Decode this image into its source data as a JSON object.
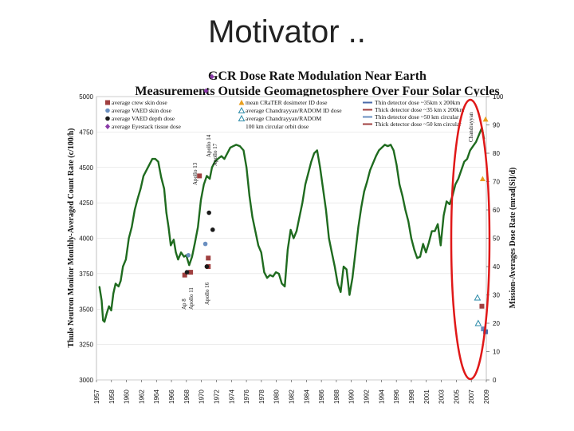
{
  "slide": {
    "title": "Motivator .."
  },
  "chart_data": {
    "type": "line",
    "title_line1": "GCR Dose Rate Modulation Near Earth",
    "title_line2": "Measurements Outside Geomagnetosphere Over Four Solar Cycles",
    "ylabel": "Thule Neutron Monitor Monthly-Averaged Count Rate (c/100/h)",
    "y2label": "Mission-Averages Dose Rate (mrad[Si]/d)",
    "ylim": [
      3000,
      5000
    ],
    "y2lim": [
      0,
      100
    ],
    "xlim": [
      1957,
      2010
    ],
    "x_ticks": [
      "1957",
      "1958",
      "1960",
      "1962",
      "1964",
      "1966",
      "1968",
      "1970",
      "1972",
      "1974",
      "1976",
      "1978",
      "1980",
      "1982",
      "1984",
      "1986",
      "1988",
      "1990",
      "1992",
      "1994",
      "1996",
      "1998",
      "2001",
      "2003",
      "2005",
      "2007",
      "2009"
    ],
    "y_ticks": [
      "3000",
      "3250",
      "3500",
      "3750",
      "4000",
      "4250",
      "4500",
      "4750",
      "5000"
    ],
    "y2_ticks": [
      "0",
      "10",
      "20",
      "30",
      "40",
      "50",
      "60",
      "70",
      "80",
      "90",
      "100"
    ],
    "colors": {
      "neutron": "#1f6b1f",
      "dose_rect": "#a04040",
      "dose_circle_blue": "#6a8fc0",
      "dose_dot": "#1a1a1a",
      "dose_diamond": "#8a3aa8",
      "triangle_fill": "#e8a020",
      "triangle_outline": "#2a8aa8",
      "highlight": "#e01818"
    },
    "legend": [
      {
        "label": "average crew skin dose",
        "marker": "square",
        "color": "#a04040"
      },
      {
        "label": "average VAED skin dose",
        "marker": "circle",
        "color": "#6a8fc0"
      },
      {
        "label": "average VAED depth dose",
        "marker": "circle",
        "color": "#1a1a1a"
      },
      {
        "label": "average Eyestack tissue dose",
        "marker": "diamond",
        "color": "#8a3aa8"
      },
      {
        "label": "mean CRaTER dosimeter ID dose",
        "marker": "triangle",
        "color": "#e8a020"
      },
      {
        "label": "average Chandrayyan/RADOM ID dose",
        "marker": "triangle-open",
        "color": "#2a8aa8"
      },
      {
        "label": "average Chandrayyan/RADOM",
        "marker": "triangle-open",
        "color": "#2a8aa8"
      },
      {
        "label": "100 km circular orbit dose",
        "marker": "none",
        "color": "#2a8aa8"
      },
      {
        "label": "Thin detector dose ~35km x 200km",
        "marker": "line",
        "color": "#4a6aa8"
      },
      {
        "label": "Thick detector dose ~35 km x 200km",
        "marker": "line",
        "color": "#a04040"
      },
      {
        "label": "Thin detector dose ~50 km circular",
        "marker": "line",
        "color": "#6a8fc0"
      },
      {
        "label": "Thick detector dose ~50 km circular",
        "marker": "line",
        "color": "#a04040"
      }
    ],
    "mission_labels": [
      {
        "text": "Apollo 13"
      },
      {
        "text": "Apollo 14"
      },
      {
        "text": "Apollo 17"
      },
      {
        "text": "Ap 8"
      },
      {
        "text": "Apollo 11"
      },
      {
        "text": "Apollo 16"
      },
      {
        "text": "Chandrayyan"
      }
    ],
    "series": [
      {
        "points": [
          [
            1957.4,
            3660
          ],
          [
            1957.7,
            3560
          ],
          [
            1957.9,
            3420
          ],
          [
            1958.1,
            3410
          ],
          [
            1958.4,
            3470
          ],
          [
            1958.7,
            3520
          ],
          [
            1959.0,
            3490
          ],
          [
            1959.3,
            3610
          ],
          [
            1959.6,
            3680
          ],
          [
            1960.0,
            3660
          ],
          [
            1960.3,
            3700
          ],
          [
            1960.6,
            3800
          ],
          [
            1961.0,
            3850
          ],
          [
            1961.4,
            4000
          ],
          [
            1961.8,
            4080
          ],
          [
            1962.2,
            4200
          ],
          [
            1962.6,
            4280
          ],
          [
            1963.0,
            4350
          ],
          [
            1963.4,
            4440
          ],
          [
            1963.8,
            4480
          ],
          [
            1964.2,
            4520
          ],
          [
            1964.6,
            4560
          ],
          [
            1965.0,
            4560
          ],
          [
            1965.4,
            4540
          ],
          [
            1965.8,
            4430
          ],
          [
            1966.2,
            4350
          ],
          [
            1966.5,
            4180
          ],
          [
            1966.8,
            4080
          ],
          [
            1967.1,
            3950
          ],
          [
            1967.5,
            3990
          ],
          [
            1967.8,
            3900
          ],
          [
            1968.1,
            3850
          ],
          [
            1968.5,
            3900
          ],
          [
            1968.9,
            3870
          ],
          [
            1969.2,
            3880
          ],
          [
            1969.6,
            3810
          ],
          [
            1970.0,
            3870
          ],
          [
            1970.4,
            3970
          ],
          [
            1970.8,
            4080
          ],
          [
            1971.2,
            4270
          ],
          [
            1971.6,
            4380
          ],
          [
            1972.0,
            4440
          ],
          [
            1972.4,
            4420
          ],
          [
            1972.7,
            4500
          ],
          [
            1973.1,
            4540
          ],
          [
            1973.5,
            4560
          ],
          [
            1974.0,
            4580
          ],
          [
            1974.4,
            4560
          ],
          [
            1974.8,
            4600
          ],
          [
            1975.2,
            4640
          ],
          [
            1975.6,
            4650
          ],
          [
            1976.0,
            4660
          ],
          [
            1976.5,
            4650
          ],
          [
            1977.0,
            4620
          ],
          [
            1977.4,
            4500
          ],
          [
            1977.8,
            4300
          ],
          [
            1978.2,
            4150
          ],
          [
            1978.6,
            4050
          ],
          [
            1979.0,
            3950
          ],
          [
            1979.4,
            3900
          ],
          [
            1979.8,
            3760
          ],
          [
            1980.2,
            3720
          ],
          [
            1980.6,
            3740
          ],
          [
            1981.0,
            3730
          ],
          [
            1981.4,
            3760
          ],
          [
            1981.8,
            3750
          ],
          [
            1982.2,
            3680
          ],
          [
            1982.6,
            3660
          ],
          [
            1983.0,
            3920
          ],
          [
            1983.4,
            4060
          ],
          [
            1983.8,
            4000
          ],
          [
            1984.2,
            4050
          ],
          [
            1984.6,
            4150
          ],
          [
            1985.0,
            4250
          ],
          [
            1985.4,
            4380
          ],
          [
            1985.8,
            4460
          ],
          [
            1986.2,
            4540
          ],
          [
            1986.6,
            4600
          ],
          [
            1987.0,
            4620
          ],
          [
            1987.4,
            4500
          ],
          [
            1987.8,
            4350
          ],
          [
            1988.2,
            4200
          ],
          [
            1988.6,
            4000
          ],
          [
            1989.0,
            3900
          ],
          [
            1989.4,
            3800
          ],
          [
            1989.8,
            3680
          ],
          [
            1990.2,
            3620
          ],
          [
            1990.6,
            3800
          ],
          [
            1991.0,
            3780
          ],
          [
            1991.4,
            3600
          ],
          [
            1991.8,
            3720
          ],
          [
            1992.2,
            3900
          ],
          [
            1992.6,
            4080
          ],
          [
            1993.0,
            4220
          ],
          [
            1993.4,
            4330
          ],
          [
            1993.8,
            4400
          ],
          [
            1994.2,
            4480
          ],
          [
            1994.6,
            4530
          ],
          [
            1995.0,
            4580
          ],
          [
            1995.4,
            4620
          ],
          [
            1995.8,
            4640
          ],
          [
            1996.2,
            4660
          ],
          [
            1996.6,
            4650
          ],
          [
            1997.0,
            4660
          ],
          [
            1997.4,
            4620
          ],
          [
            1997.8,
            4520
          ],
          [
            1998.2,
            4380
          ],
          [
            1998.6,
            4300
          ],
          [
            1999.0,
            4200
          ],
          [
            1999.4,
            4120
          ],
          [
            1999.8,
            4000
          ],
          [
            2000.2,
            3920
          ],
          [
            2000.6,
            3860
          ],
          [
            2001.0,
            3870
          ],
          [
            2001.4,
            3960
          ],
          [
            2001.8,
            3900
          ],
          [
            2002.2,
            3970
          ],
          [
            2002.6,
            4050
          ],
          [
            2003.0,
            4050
          ],
          [
            2003.4,
            4100
          ],
          [
            2003.8,
            3950
          ],
          [
            2004.2,
            4160
          ],
          [
            2004.6,
            4260
          ],
          [
            2005.0,
            4240
          ],
          [
            2005.4,
            4300
          ],
          [
            2005.8,
            4380
          ],
          [
            2006.2,
            4420
          ],
          [
            2006.6,
            4480
          ],
          [
            2007.0,
            4540
          ],
          [
            2007.4,
            4560
          ],
          [
            2007.8,
            4620
          ],
          [
            2008.2,
            4650
          ],
          [
            2008.6,
            4680
          ],
          [
            2009.0,
            4730
          ],
          [
            2009.4,
            4780
          ],
          [
            2009.7,
            4700
          ]
        ]
      }
    ],
    "dose_points": [
      {
        "marker": "square",
        "x": 1969.0,
        "y2": 37,
        "color": "#a04040"
      },
      {
        "marker": "square",
        "x": 1969.8,
        "y2": 38,
        "color": "#a04040"
      },
      {
        "marker": "square",
        "x": 1971.0,
        "y2": 72,
        "color": "#a04040"
      },
      {
        "marker": "square",
        "x": 1972.2,
        "y2": 43,
        "color": "#a04040"
      },
      {
        "marker": "square",
        "x": 1972.2,
        "y2": 40,
        "color": "#a04040"
      },
      {
        "marker": "circle",
        "x": 1969.5,
        "y2": 44,
        "color": "#6a8fc0"
      },
      {
        "marker": "circle",
        "x": 1971.8,
        "y2": 48,
        "color": "#6a8fc0"
      },
      {
        "marker": "circle",
        "x": 1969.3,
        "y2": 38,
        "color": "#1a1a1a"
      },
      {
        "marker": "circle",
        "x": 1972.0,
        "y2": 40,
        "color": "#1a1a1a"
      },
      {
        "marker": "circle",
        "x": 1972.3,
        "y2": 59,
        "color": "#1a1a1a"
      },
      {
        "marker": "circle",
        "x": 1972.8,
        "y2": 53,
        "color": "#1a1a1a"
      },
      {
        "marker": "diamond",
        "x": 1971.9,
        "y2": 102,
        "color": "#8a3aa8"
      },
      {
        "marker": "diamond",
        "x": 1972.7,
        "y2": 107,
        "color": "#8a3aa8"
      },
      {
        "marker": "triangle",
        "x": 2009.5,
        "y2": 71,
        "color": "#e8a020"
      },
      {
        "marker": "triangle",
        "x": 2009.9,
        "y2": 92,
        "color": "#e8a020"
      },
      {
        "marker": "triangle-open",
        "x": 2008.8,
        "y2": 29,
        "color": "#2a8aa8"
      },
      {
        "marker": "triangle-open",
        "x": 2008.9,
        "y2": 20,
        "color": "#2a8aa8"
      },
      {
        "marker": "square",
        "x": 2009.4,
        "y2": 26,
        "color": "#a04040"
      },
      {
        "marker": "square",
        "x": 2009.6,
        "y2": 18,
        "color": "#6a8fc0"
      },
      {
        "marker": "square",
        "x": 2009.9,
        "y2": 17,
        "color": "#4a6aa8"
      }
    ]
  }
}
